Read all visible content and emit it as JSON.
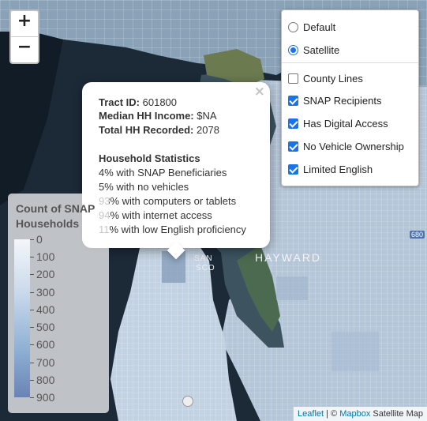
{
  "zoom": {
    "in_label": "+",
    "out_label": "−"
  },
  "base_layers": [
    {
      "label": "Default",
      "selected": false
    },
    {
      "label": "Satellite",
      "selected": true
    }
  ],
  "overlays": [
    {
      "label": "County Lines",
      "checked": false
    },
    {
      "label": "SNAP Recipients",
      "checked": true
    },
    {
      "label": "Has Digital Access",
      "checked": true
    },
    {
      "label": "No Vehicle Ownership",
      "checked": true
    },
    {
      "label": "Limited English",
      "checked": true
    }
  ],
  "popup": {
    "close": "×",
    "tract_label": "Tract ID:",
    "tract_value": "601800",
    "income_label": "Median HH Income:",
    "income_value": "$NA",
    "total_label": "Total HH Recorded:",
    "total_value": "2078",
    "stats_heading": "Household Statistics",
    "stats": [
      "4% with SNAP Beneficiaries",
      "5% with no vehicles",
      "93% with computers or tablets",
      "94% with internet access",
      "11% with low English proficiency"
    ]
  },
  "legend": {
    "title_line1": "Count of SNAP",
    "title_line2": "Households",
    "ticks": [
      "0",
      "100",
      "200",
      "300",
      "400",
      "500",
      "600",
      "700",
      "800",
      "900"
    ],
    "colors": {
      "low": "#f4f6f9",
      "high": "#6a83b5"
    }
  },
  "map_labels": {
    "san": "SAN",
    "sco": "SCO",
    "hayward": "HAYWARD",
    "highway": "680"
  },
  "attribution": {
    "leaflet": "Leaflet",
    "sep": " | © ",
    "mapbox": "Mapbox",
    "rest": " Satellite Map"
  }
}
